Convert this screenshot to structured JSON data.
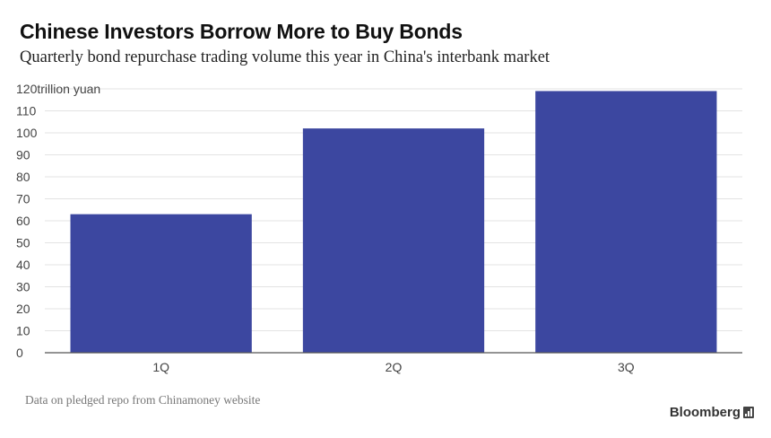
{
  "header": {
    "title": "Chinese Investors Borrow More to Buy Bonds",
    "subtitle": "Quarterly bond repurchase trading volume this year in China's interbank market"
  },
  "chart_data": {
    "type": "bar",
    "categories": [
      "1Q",
      "2Q",
      "3Q"
    ],
    "values": [
      63,
      102,
      119
    ],
    "ylim": [
      0,
      120
    ],
    "yticks": [
      0,
      10,
      20,
      30,
      40,
      50,
      60,
      70,
      80,
      90,
      100,
      110,
      120
    ],
    "ytick_top_label": "120trillion yuan",
    "grid": true,
    "bar_color": "#3c47a0"
  },
  "footer": {
    "note": "Data on pledged repo from Chinamoney website",
    "brand": "Bloomberg",
    "brand_icon": "bloomberg-terminal-icon"
  }
}
